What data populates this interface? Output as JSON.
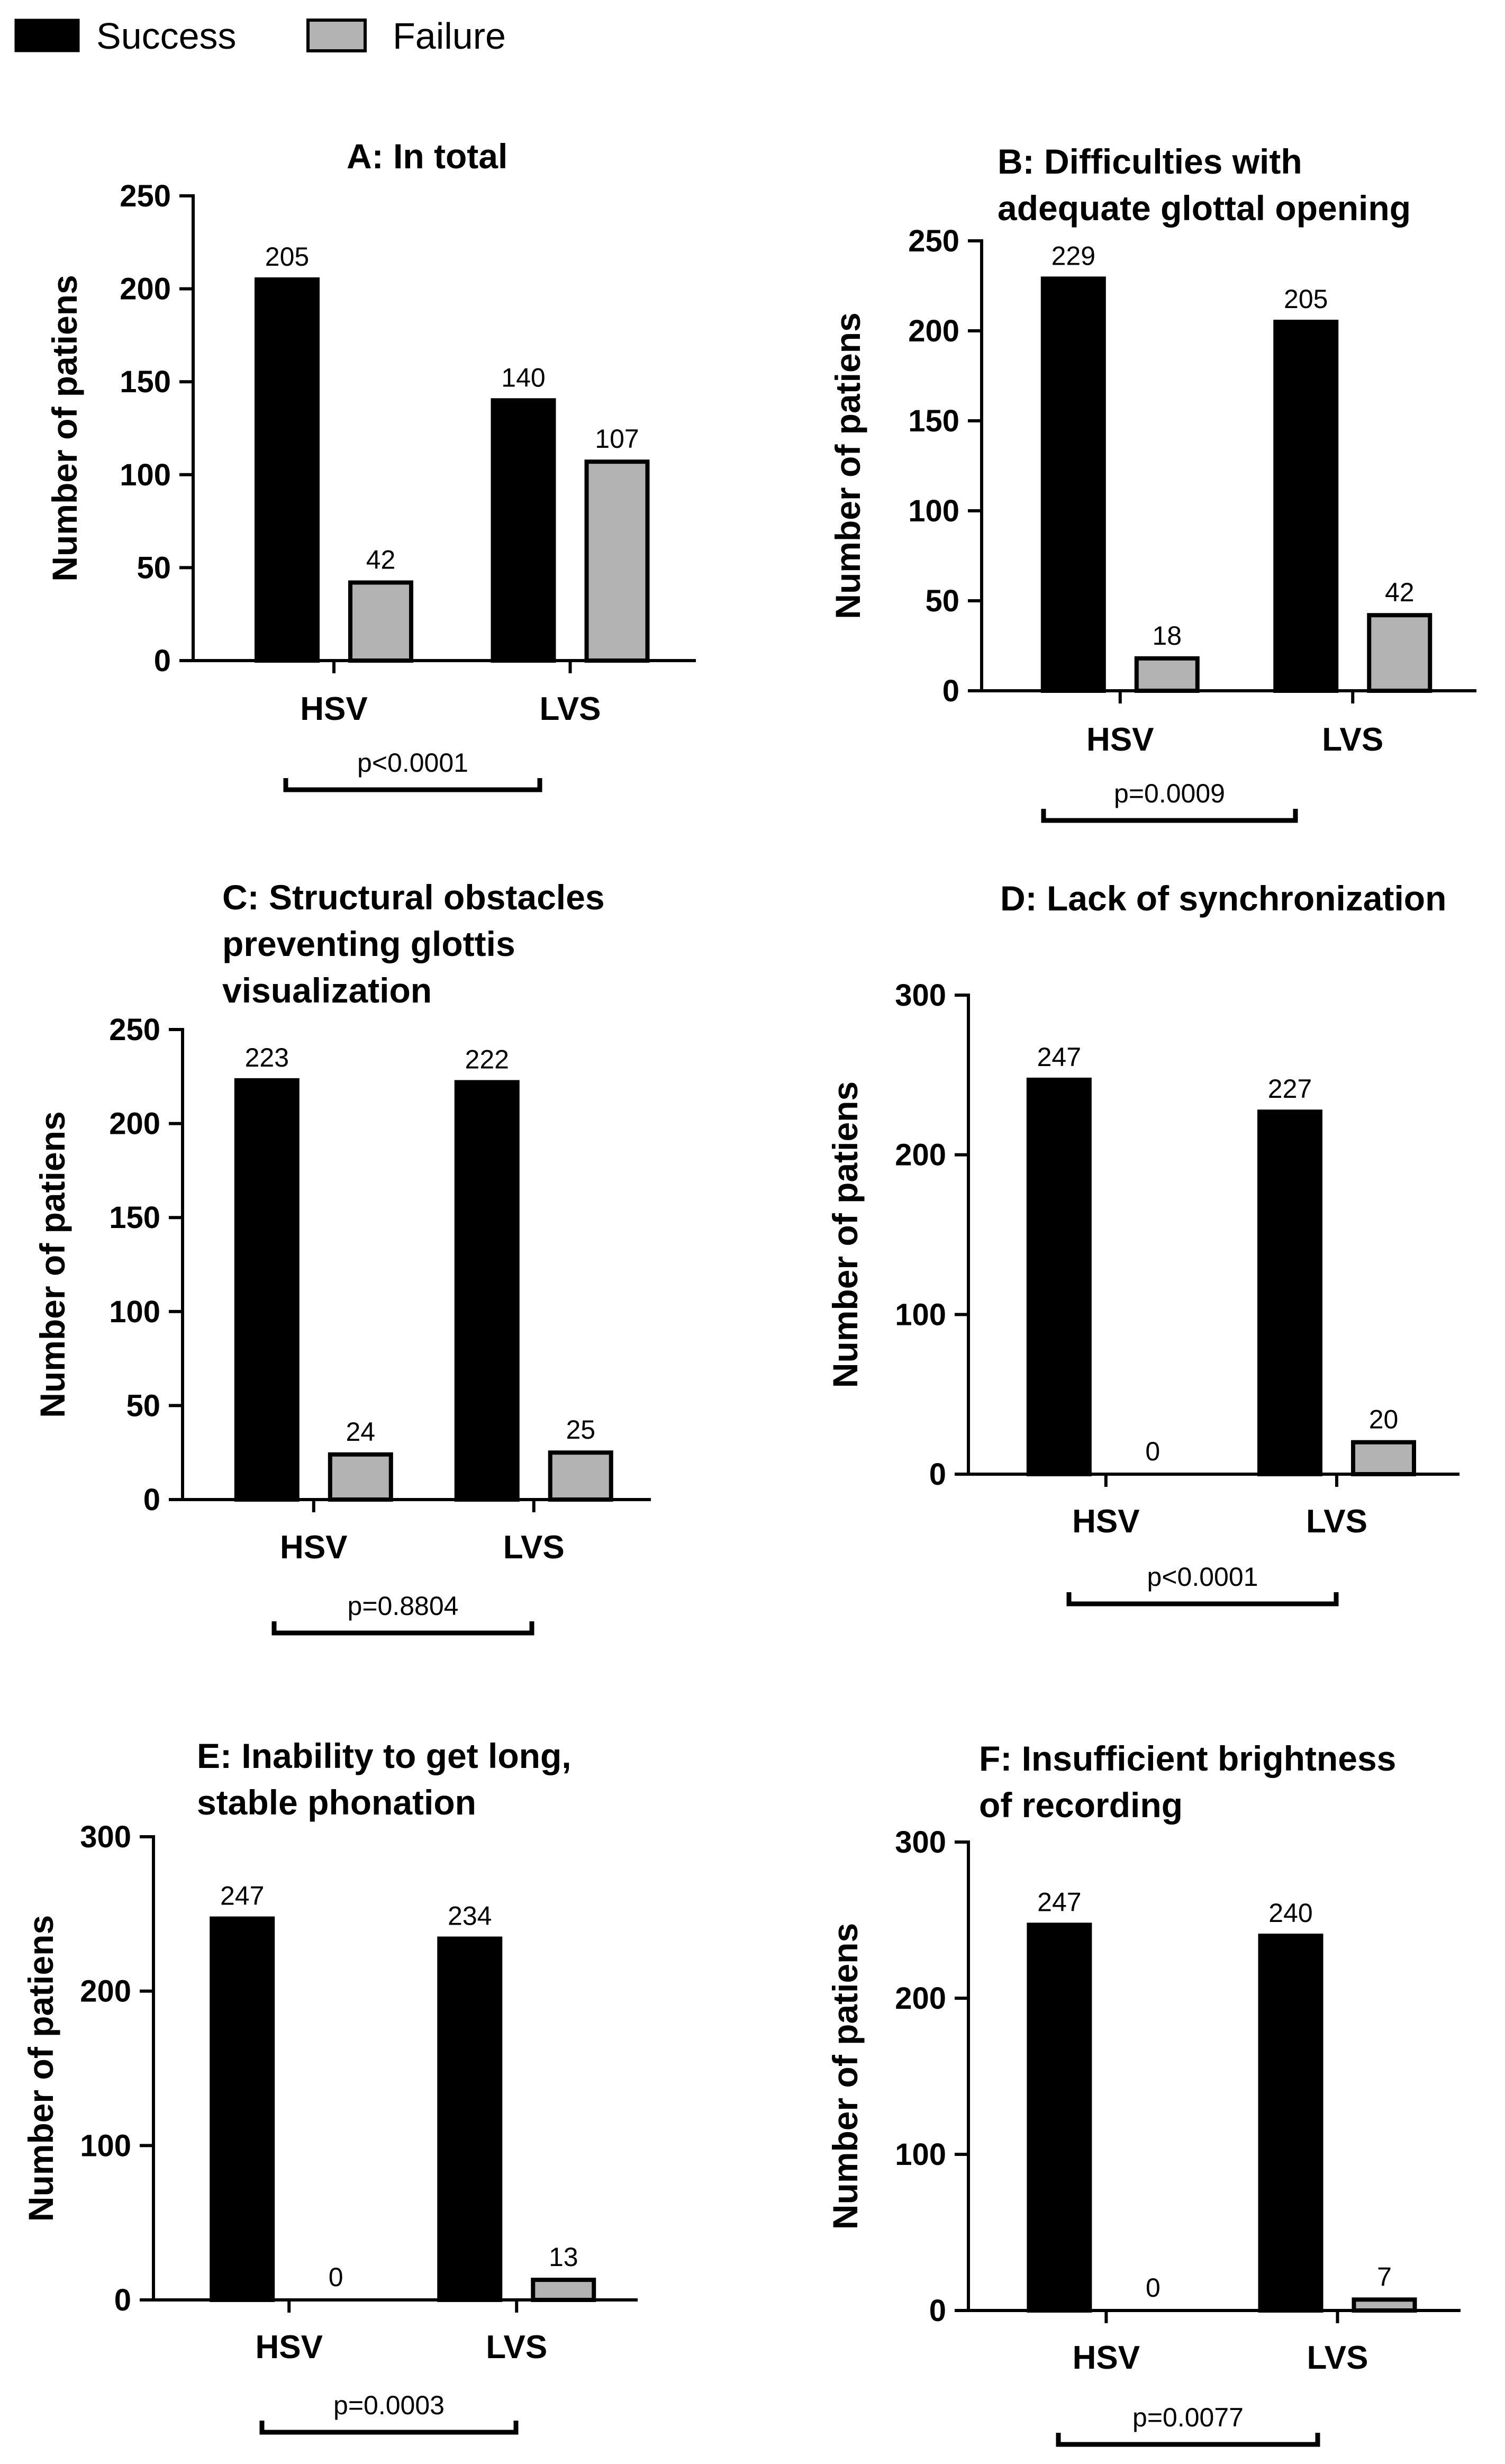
{
  "legend": {
    "success_label": "Success",
    "failure_label": "Failure",
    "success_color": "#000000",
    "failure_color": "#b3b3b3"
  },
  "chart_data": [
    {
      "type": "bar",
      "title_lines": [
        "A: In total"
      ],
      "ylabel": "Number of patiens",
      "categories": [
        "HSV",
        "LVS"
      ],
      "series": [
        {
          "name": "Success",
          "values": [
            205,
            140
          ]
        },
        {
          "name": "Failure",
          "values": [
            42,
            107
          ]
        }
      ],
      "ylim": [
        0,
        250
      ],
      "yticks": [
        0,
        50,
        100,
        150,
        200,
        250
      ],
      "p_value": "p<0.0001"
    },
    {
      "type": "bar",
      "title_lines": [
        "B: Difficulties with",
        "adequate glottal opening"
      ],
      "ylabel": "Number of patiens",
      "categories": [
        "HSV",
        "LVS"
      ],
      "series": [
        {
          "name": "Success",
          "values": [
            229,
            205
          ]
        },
        {
          "name": "Failure",
          "values": [
            18,
            42
          ]
        }
      ],
      "ylim": [
        0,
        250
      ],
      "yticks": [
        0,
        50,
        100,
        150,
        200,
        250
      ],
      "p_value": "p=0.0009"
    },
    {
      "type": "bar",
      "title_lines": [
        "C: Structural obstacles",
        "preventing glottis",
        "visualization"
      ],
      "ylabel": "Number of patiens",
      "categories": [
        "HSV",
        "LVS"
      ],
      "series": [
        {
          "name": "Success",
          "values": [
            223,
            222
          ]
        },
        {
          "name": "Failure",
          "values": [
            24,
            25
          ]
        }
      ],
      "ylim": [
        0,
        250
      ],
      "yticks": [
        0,
        50,
        100,
        150,
        200,
        250
      ],
      "p_value": "p=0.8804"
    },
    {
      "type": "bar",
      "title_lines": [
        "D: Lack of synchronization"
      ],
      "ylabel": "Number of patiens",
      "categories": [
        "HSV",
        "LVS"
      ],
      "series": [
        {
          "name": "Success",
          "values": [
            247,
            227
          ]
        },
        {
          "name": "Failure",
          "values": [
            0,
            20
          ]
        }
      ],
      "ylim": [
        0,
        300
      ],
      "yticks": [
        0,
        100,
        200,
        300
      ],
      "p_value": "p<0.0001"
    },
    {
      "type": "bar",
      "title_lines": [
        "E: Inability to get long,",
        "stable phonation"
      ],
      "ylabel": "Number of patiens",
      "categories": [
        "HSV",
        "LVS"
      ],
      "series": [
        {
          "name": "Success",
          "values": [
            247,
            234
          ]
        },
        {
          "name": "Failure",
          "values": [
            0,
            13
          ]
        }
      ],
      "ylim": [
        0,
        300
      ],
      "yticks": [
        0,
        100,
        200,
        300
      ],
      "p_value": "p=0.0003"
    },
    {
      "type": "bar",
      "title_lines": [
        "F: Insufficient brightness",
        "of recording"
      ],
      "ylabel": "Number of patiens",
      "categories": [
        "HSV",
        "LVS"
      ],
      "series": [
        {
          "name": "Success",
          "values": [
            247,
            240
          ]
        },
        {
          "name": "Failure",
          "values": [
            0,
            7
          ]
        }
      ],
      "ylim": [
        0,
        300
      ],
      "yticks": [
        0,
        100,
        200,
        300
      ],
      "p_value": "p=0.0077"
    }
  ]
}
